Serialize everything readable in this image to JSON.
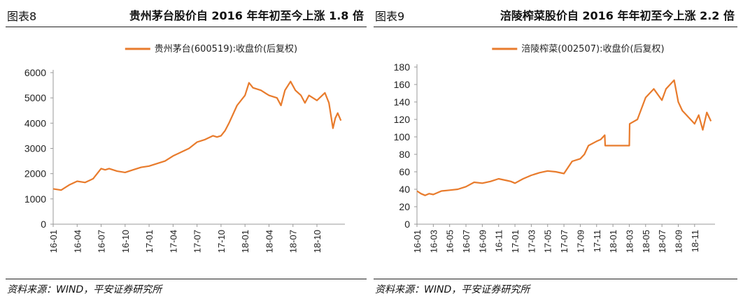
{
  "panels": [
    {
      "figure_label": "图表8",
      "title": "贵州茅台股价自 2016 年年初至今上涨 1.8 倍",
      "source": "资料来源：WIND，平安证券研究所",
      "chart_data": {
        "type": "line",
        "legend": "贵州茅台(600519):收盘价(后复权)",
        "legend_position": "top-center",
        "ylim": [
          0,
          6000
        ],
        "yticks": [
          "0",
          "1000",
          "2000",
          "3000",
          "4000",
          "5000",
          "6000"
        ],
        "xticks": [
          "16-01",
          "16-04",
          "16-07",
          "16-10",
          "17-01",
          "17-04",
          "17-07",
          "17-10",
          "18-01",
          "18-04",
          "18-07",
          "18-10"
        ],
        "grid": false,
        "series_color": "#e87b2c",
        "series": [
          {
            "name": "贵州茅台(600519):收盘价(后复权)",
            "x": [
              0,
              1,
              2,
              3,
              4,
              5,
              6,
              6.5,
              7,
              8,
              9,
              10,
              11,
              12,
              13,
              14,
              15,
              16,
              17,
              18,
              19,
              20,
              20.5,
              21,
              21.5,
              22,
              23,
              24,
              24.5,
              25,
              26,
              27,
              28,
              28.5,
              29,
              29.7,
              30.3,
              31,
              31.5,
              32,
              33,
              34,
              34.5,
              35,
              35.3,
              35.6,
              36
            ],
            "y": [
              1400,
              1350,
              1550,
              1700,
              1650,
              1800,
              2200,
              2150,
              2200,
              2100,
              2050,
              2150,
              2250,
              2300,
              2400,
              2500,
              2700,
              2850,
              3000,
              3250,
              3350,
              3500,
              3450,
              3500,
              3700,
              4000,
              4700,
              5100,
              5600,
              5400,
              5300,
              5100,
              5000,
              4700,
              5300,
              5650,
              5300,
              5100,
              4800,
              5100,
              4900,
              5200,
              4800,
              3800,
              4200,
              4400,
              4100
            ]
          }
        ]
      }
    },
    {
      "figure_label": "图表9",
      "title": "涪陵榨菜股价自 2016 年年初至今上涨 2.2 倍",
      "source": "资料来源：WIND，平安证券研究所",
      "chart_data": {
        "type": "line",
        "legend": "涪陵榨菜(002507):收盘价(后复权)",
        "legend_position": "top-center",
        "ylim": [
          0,
          180
        ],
        "yticks": [
          "0",
          "20",
          "40",
          "60",
          "80",
          "100",
          "120",
          "140",
          "160",
          "180"
        ],
        "xticks": [
          "16-01",
          "16-03",
          "16-05",
          "16-07",
          "16-09",
          "16-11",
          "17-01",
          "17-03",
          "17-05",
          "17-07",
          "17-09",
          "17-11",
          "18-01",
          "18-03",
          "18-05",
          "18-07",
          "18-09",
          "18-11"
        ],
        "grid": false,
        "series_color": "#e87b2c",
        "series": [
          {
            "name": "涪陵榨菜(002507):收盘价(后复权)",
            "x": [
              0,
              0.5,
              1,
              1.5,
              2,
              3,
              4,
              5,
              6,
              7,
              8,
              9,
              10,
              11,
              11.5,
              12,
              13,
              14,
              15,
              16,
              17,
              18,
              19,
              20,
              20.5,
              21,
              22,
              22.5,
              23,
              23.05,
              24,
              25,
              26,
              26.05,
              27,
              28,
              29,
              30,
              30.5,
              31,
              31.5,
              32,
              32.5,
              33,
              33.5,
              34,
              34.5,
              35,
              35.5,
              36
            ],
            "y": [
              38,
              35,
              33,
              35,
              34,
              38,
              39,
              40,
              43,
              48,
              47,
              49,
              52,
              50,
              49,
              47,
              52,
              56,
              59,
              61,
              60,
              58,
              72,
              75,
              80,
              90,
              95,
              97,
              102,
              90,
              90,
              90,
              90,
              115,
              120,
              145,
              155,
              142,
              155,
              160,
              165,
              140,
              130,
              125,
              120,
              115,
              125,
              108,
              128,
              118
            ]
          }
        ]
      }
    }
  ]
}
